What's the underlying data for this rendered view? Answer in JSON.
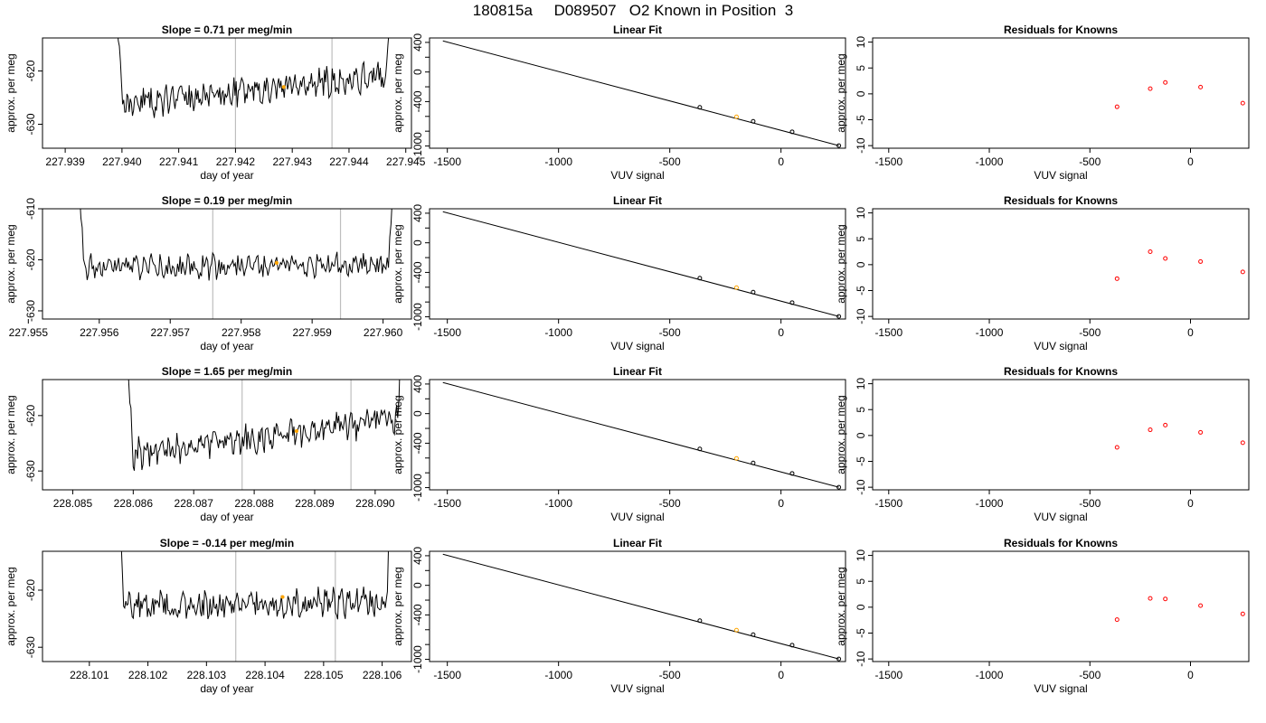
{
  "figure": {
    "title": "180815a     D089507   O2 Known in Position  3"
  },
  "colors": {
    "trace": "#000000",
    "frame": "#000000",
    "marker_lines": "#bebebe",
    "highlight": "#ffa500",
    "residual": "#ff0000"
  },
  "chart_data": [
    {
      "type": "line",
      "panel": "trace-1",
      "title": "Slope =  0.71  per meg/min",
      "xlabel": "day of year",
      "ylabel": "approx. per meg",
      "xlim": [
        227.9386,
        227.9451
      ],
      "ylim": [
        -634.5,
        -613.8
      ],
      "xticks": [
        "227.939",
        "227.940",
        "227.941",
        "227.942",
        "227.943",
        "227.944",
        "227.945"
      ],
      "xtick_values": [
        227.939,
        227.94,
        227.941,
        227.942,
        227.943,
        227.944,
        227.945
      ],
      "yticks": [
        "-620",
        "-630"
      ],
      "ytick_values": [
        -620,
        -630
      ],
      "vlines": [
        227.942,
        227.9437
      ],
      "x_start": 227.9398,
      "x_end": 227.9448,
      "trend_start": -626.8,
      "trend_end": -620.6,
      "noise_amp": 2.2,
      "seed": 11,
      "highlight": {
        "x": 227.94285,
        "y": -623.0
      }
    },
    {
      "type": "line",
      "panel": "fit-1",
      "title": "Linear Fit",
      "xlabel": "VUV signal",
      "ylabel": "approx. per meg",
      "xlim": [
        -1580,
        290
      ],
      "ylim": [
        -1030,
        460
      ],
      "xticks": [
        "-1500",
        "-1000",
        "-500",
        "0"
      ],
      "xtick_values": [
        -1500,
        -1000,
        -500,
        0
      ],
      "yticks": [
        "400",
        "0",
        "-400",
        "-1000"
      ],
      "ytick_values": [
        400,
        0,
        -400,
        -1000
      ],
      "line": {
        "x": [
          -1520,
          260
        ],
        "y": [
          420,
          -995
        ]
      },
      "points": {
        "x": [
          -365,
          -200,
          -125,
          50,
          260
        ],
        "y": [
          -477,
          -606,
          -667,
          -808,
          -995
        ]
      },
      "highlight_index": 1
    },
    {
      "type": "scatter",
      "panel": "resid-1",
      "title": "Residuals for Knowns",
      "xlabel": "VUV signal",
      "ylabel": "approx. per meg",
      "xlim": [
        -1580,
        290
      ],
      "ylim": [
        -10.5,
        10.8
      ],
      "xticks": [
        "-1500",
        "-1000",
        "-500",
        "0"
      ],
      "xtick_values": [
        -1500,
        -1000,
        -500,
        0
      ],
      "yticks": [
        "10",
        "5",
        "0",
        "-5",
        "-10"
      ],
      "ytick_values": [
        10,
        5,
        0,
        -5,
        -10
      ],
      "points": {
        "x": [
          -365,
          -200,
          -125,
          50,
          260
        ],
        "y": [
          -2.5,
          1.0,
          2.2,
          1.3,
          -1.8
        ]
      }
    },
    {
      "type": "line",
      "panel": "trace-2",
      "title": "Slope =  0.19  per meg/min",
      "xlabel": "day of year",
      "ylabel": "approx. per meg",
      "xlim": [
        227.9552,
        227.9604
      ],
      "ylim": [
        -631.6,
        -610.0
      ],
      "xticks": [
        "227.955",
        "227.956",
        "227.957",
        "227.958",
        "227.959",
        "227.960"
      ],
      "xtick_values": [
        227.955,
        227.956,
        227.957,
        227.958,
        227.959,
        227.96
      ],
      "yticks": [
        "-610",
        "-620",
        "-630"
      ],
      "ytick_values": [
        -610,
        -620,
        -630
      ],
      "vlines": [
        227.9576,
        227.9594
      ],
      "x_start": 227.9556,
      "x_end": 227.9602,
      "trend_start": -621.5,
      "trend_end": -621.0,
      "noise_amp": 2.0,
      "seed": 23,
      "highlight": {
        "x": 227.9585,
        "y": -620.6
      }
    },
    {
      "type": "line",
      "panel": "fit-2",
      "title": "Linear Fit",
      "xlabel": "VUV signal",
      "ylabel": "approx. per meg",
      "xlim": [
        -1580,
        290
      ],
      "ylim": [
        -1030,
        460
      ],
      "xticks": [
        "-1500",
        "-1000",
        "-500",
        "0"
      ],
      "xtick_values": [
        -1500,
        -1000,
        -500,
        0
      ],
      "yticks": [
        "400",
        "0",
        "-400",
        "-1000"
      ],
      "ytick_values": [
        400,
        0,
        -400,
        -1000
      ],
      "line": {
        "x": [
          -1520,
          260
        ],
        "y": [
          420,
          -995
        ]
      },
      "points": {
        "x": [
          -365,
          -200,
          -125,
          50,
          260
        ],
        "y": [
          -477,
          -606,
          -667,
          -808,
          -995
        ]
      },
      "highlight_index": 1
    },
    {
      "type": "scatter",
      "panel": "resid-2",
      "title": "Residuals for Knowns",
      "xlabel": "VUV signal",
      "ylabel": "approx. per meg",
      "xlim": [
        -1580,
        290
      ],
      "ylim": [
        -10.5,
        10.8
      ],
      "xticks": [
        "-1500",
        "-1000",
        "-500",
        "0"
      ],
      "xtick_values": [
        -1500,
        -1000,
        -500,
        0
      ],
      "yticks": [
        "10",
        "5",
        "0",
        "-5",
        "-10"
      ],
      "ytick_values": [
        10,
        5,
        0,
        -5,
        -10
      ],
      "points": {
        "x": [
          -365,
          -200,
          -125,
          50,
          260
        ],
        "y": [
          -2.7,
          2.5,
          1.2,
          0.6,
          -1.4
        ]
      }
    },
    {
      "type": "line",
      "panel": "trace-3",
      "title": "Slope =  1.65  per meg/min",
      "xlabel": "day of year",
      "ylabel": "approx. per meg",
      "xlim": [
        228.0845,
        228.0906
      ],
      "ylim": [
        -633.4,
        -613.5
      ],
      "xticks": [
        "228.085",
        "228.086",
        "228.087",
        "228.088",
        "228.089",
        "228.090"
      ],
      "xtick_values": [
        228.085,
        228.086,
        228.087,
        228.088,
        228.089,
        228.09
      ],
      "yticks": [
        "-620",
        "-630"
      ],
      "ytick_values": [
        -620,
        -630
      ],
      "vlines": [
        228.0878,
        228.0896
      ],
      "x_start": 228.0858,
      "x_end": 228.0905,
      "trend_start": -627.2,
      "trend_end": -620.5,
      "noise_amp": 2.1,
      "seed": 37,
      "highlight": {
        "x": 228.0887,
        "y": -622.8
      }
    },
    {
      "type": "line",
      "panel": "fit-3",
      "title": "Linear Fit",
      "xlabel": "VUV signal",
      "ylabel": "approx. per meg",
      "xlim": [
        -1580,
        290
      ],
      "ylim": [
        -1030,
        460
      ],
      "xticks": [
        "-1500",
        "-1000",
        "-500",
        "0"
      ],
      "xtick_values": [
        -1500,
        -1000,
        -500,
        0
      ],
      "yticks": [
        "400",
        "0",
        "-400",
        "-1000"
      ],
      "ytick_values": [
        400,
        0,
        -400,
        -1000
      ],
      "line": {
        "x": [
          -1520,
          260
        ],
        "y": [
          420,
          -995
        ]
      },
      "points": {
        "x": [
          -365,
          -200,
          -125,
          50,
          260
        ],
        "y": [
          -477,
          -606,
          -667,
          -808,
          -995
        ]
      },
      "highlight_index": 1
    },
    {
      "type": "scatter",
      "panel": "resid-3",
      "title": "Residuals for Knowns",
      "xlabel": "VUV signal",
      "ylabel": "approx. per meg",
      "xlim": [
        -1580,
        290
      ],
      "ylim": [
        -10.5,
        10.8
      ],
      "xticks": [
        "-1500",
        "-1000",
        "-500",
        "0"
      ],
      "xtick_values": [
        -1500,
        -1000,
        -500,
        0
      ],
      "yticks": [
        "10",
        "5",
        "0",
        "-5",
        "-10"
      ],
      "ytick_values": [
        10,
        5,
        0,
        -5,
        -10
      ],
      "points": {
        "x": [
          -365,
          -200,
          -125,
          50,
          260
        ],
        "y": [
          -2.3,
          1.1,
          2.0,
          0.6,
          -1.4
        ]
      }
    },
    {
      "type": "line",
      "panel": "trace-4",
      "title": "Slope =  -0.14  per meg/min",
      "xlabel": "day of year",
      "ylabel": "approx. per meg",
      "xlim": [
        228.1002,
        228.1065
      ],
      "ylim": [
        -632.5,
        -613.2
      ],
      "xticks": [
        "228.101",
        "228.102",
        "228.103",
        "228.104",
        "228.105",
        "228.106"
      ],
      "xtick_values": [
        228.101,
        228.102,
        228.103,
        228.104,
        228.105,
        228.106
      ],
      "yticks": [
        "-620",
        "-630"
      ],
      "ytick_values": [
        -620,
        -630
      ],
      "vlines": [
        228.1035,
        228.1052
      ],
      "x_start": 228.1014,
      "x_end": 228.1062,
      "trend_start": -622.8,
      "trend_end": -622.2,
      "noise_amp": 2.0,
      "seed": 53,
      "highlight": {
        "x": 228.1043,
        "y": -621.2
      }
    },
    {
      "type": "line",
      "panel": "fit-4",
      "title": "Linear Fit",
      "xlabel": "VUV signal",
      "ylabel": "approx. per meg",
      "xlim": [
        -1580,
        290
      ],
      "ylim": [
        -1030,
        460
      ],
      "xticks": [
        "-1500",
        "-1000",
        "-500",
        "0"
      ],
      "xtick_values": [
        -1500,
        -1000,
        -500,
        0
      ],
      "yticks": [
        "400",
        "0",
        "-400",
        "-1000"
      ],
      "ytick_values": [
        400,
        0,
        -400,
        -1000
      ],
      "line": {
        "x": [
          -1520,
          260
        ],
        "y": [
          420,
          -995
        ]
      },
      "points": {
        "x": [
          -365,
          -200,
          -125,
          50,
          260
        ],
        "y": [
          -477,
          -606,
          -667,
          -808,
          -995
        ]
      },
      "highlight_index": 1
    },
    {
      "type": "scatter",
      "panel": "resid-4",
      "title": "Residuals for Knowns",
      "xlabel": "VUV signal",
      "ylabel": "approx. per meg",
      "xlim": [
        -1580,
        290
      ],
      "ylim": [
        -10.5,
        10.8
      ],
      "xticks": [
        "-1500",
        "-1000",
        "-500",
        "0"
      ],
      "xtick_values": [
        -1500,
        -1000,
        -500,
        0
      ],
      "yticks": [
        "10",
        "5",
        "0",
        "-5",
        "-10"
      ],
      "ytick_values": [
        10,
        5,
        0,
        -5,
        -10
      ],
      "points": {
        "x": [
          -365,
          -200,
          -125,
          50,
          260
        ],
        "y": [
          -2.4,
          1.7,
          1.6,
          0.3,
          -1.3
        ]
      }
    }
  ]
}
